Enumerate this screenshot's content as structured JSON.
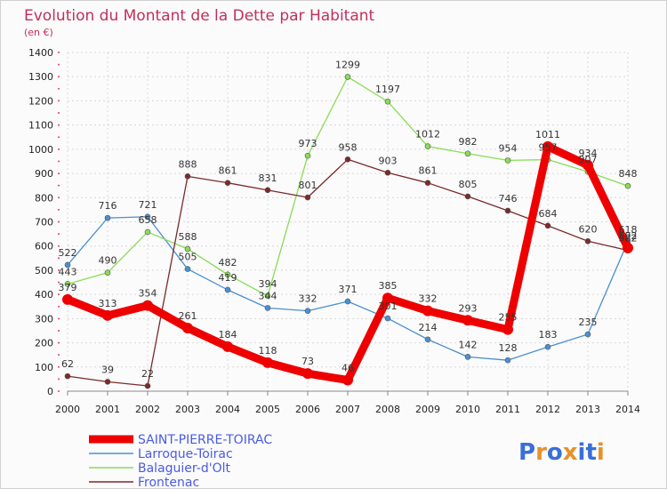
{
  "chart_data": {
    "type": "line",
    "title": "Evolution du Montant de la Dette par Habitant",
    "subtitle": "(en €)",
    "xlabel": "",
    "ylabel": "",
    "ylim": [
      0,
      1400
    ],
    "yticks": [
      0,
      100,
      200,
      300,
      400,
      500,
      600,
      700,
      800,
      900,
      1000,
      1100,
      1200,
      1300,
      1400
    ],
    "x": [
      "2000",
      "2001",
      "2002",
      "2003",
      "2004",
      "2005",
      "2006",
      "2007",
      "2008",
      "2009",
      "2010",
      "2011",
      "2012",
      "2013",
      "2014"
    ],
    "grid": true,
    "legend_position": "bottom-left",
    "series": [
      {
        "name": "SAINT-PIERRE-TOIRAC",
        "color": "#ee0000",
        "values": [
          379,
          313,
          354,
          261,
          184,
          118,
          73,
          46,
          385,
          332,
          293,
          255,
          1011,
          934,
          592
        ]
      },
      {
        "name": "Larroque-Toirac",
        "color": "#4a90d0",
        "values": [
          522,
          716,
          721,
          505,
          419,
          344,
          332,
          371,
          301,
          214,
          142,
          128,
          183,
          235,
          618
        ]
      },
      {
        "name": "Balaguier-d'Olt",
        "color": "#88dd55",
        "values": [
          443,
          490,
          658,
          588,
          482,
          394,
          973,
          1299,
          1197,
          1012,
          982,
          954,
          957,
          907,
          848
        ]
      },
      {
        "name": "Frontenac",
        "color": "#7a2a2a",
        "values": [
          62,
          39,
          22,
          888,
          861,
          831,
          801,
          958,
          903,
          861,
          805,
          746,
          684,
          620,
          582
        ]
      }
    ],
    "value_labels": {
      "SAINT-PIERRE-TOIRAC": [
        "379",
        "313",
        "354",
        "261",
        "184",
        "118",
        "73",
        "46",
        "385",
        "332",
        "293",
        "255",
        "1011",
        "934",
        "592"
      ],
      "Larroque-Toirac": [
        "522",
        "716",
        "721",
        "505",
        "419",
        "344",
        "332",
        "371",
        "301",
        "214",
        "142",
        "128",
        "183",
        "235",
        "618"
      ],
      "Balaguier-d'Olt": [
        "443",
        "490",
        "658",
        "588",
        "482",
        "394",
        "973",
        "1299",
        "1197",
        "1012",
        "982",
        "954",
        "957",
        "907",
        "848"
      ],
      "Frontenac": [
        "62",
        "39",
        "22",
        "888",
        "861",
        "831",
        "801",
        "958",
        "903",
        "861",
        "805",
        "746",
        "684",
        "620",
        "582"
      ]
    }
  },
  "logo": {
    "text": "Proxiti"
  }
}
